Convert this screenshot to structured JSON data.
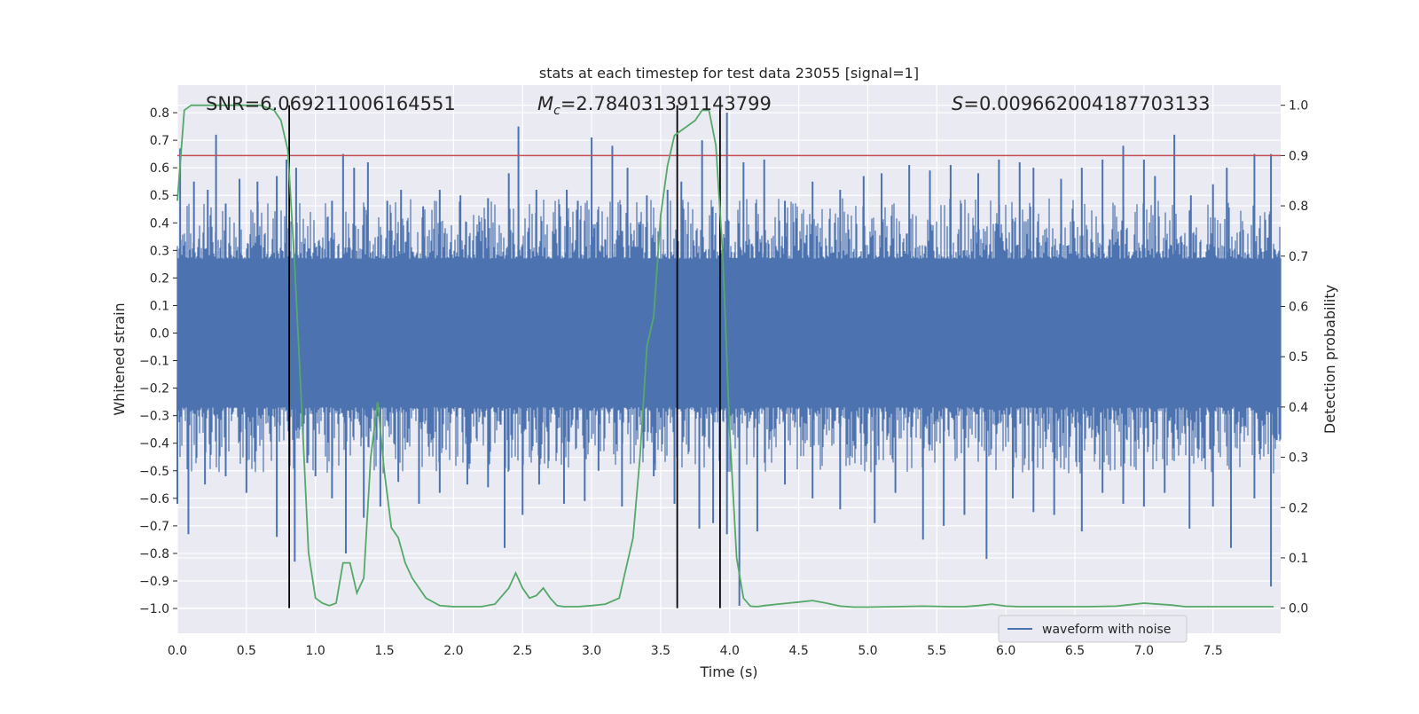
{
  "chart_data": {
    "type": "line",
    "title": "stats at each timestep for test data 23055 [signal=1]",
    "xlabel": "Time (s)",
    "ylabel_left": "Whitened strain",
    "ylabel_right": "Detection probability",
    "xlim": [
      0.0,
      7.99
    ],
    "ylim_left": [
      -1.09,
      0.9
    ],
    "ylim_right": [
      -0.05,
      1.04
    ],
    "x_ticks": [
      "0.0",
      "0.5",
      "1.0",
      "1.5",
      "2.0",
      "2.5",
      "3.0",
      "3.5",
      "4.0",
      "4.5",
      "5.0",
      "5.5",
      "6.0",
      "6.5",
      "7.0",
      "7.5"
    ],
    "y_left_ticks": [
      "0.8",
      "0.7",
      "0.6",
      "0.5",
      "0.4",
      "0.3",
      "0.2",
      "0.1",
      "0.0",
      "−0.1",
      "−0.2",
      "−0.3",
      "−0.4",
      "−0.5",
      "−0.6",
      "−0.7",
      "−0.8",
      "−0.9",
      "−1.0"
    ],
    "y_right_ticks": [
      "1.0",
      "0.9",
      "0.8",
      "0.7",
      "0.6",
      "0.5",
      "0.4",
      "0.3",
      "0.2",
      "0.1",
      "0.0"
    ],
    "grid": true,
    "annotations": {
      "snr": "SNR=6.069211006164551",
      "mc_symbol": "M",
      "mc_sub": "c",
      "mc_value": "=2.784031391143799",
      "s_symbol": "S",
      "s_value": "=0.009662004187703133"
    },
    "legend": {
      "label": "waveform with noise",
      "placement": "lower-right"
    },
    "threshold": {
      "value": 0.9,
      "axis": "right",
      "color": "#c44e52"
    },
    "vertical_lines": [
      0.81,
      3.62,
      3.93
    ],
    "series": [
      {
        "name": "waveform with noise",
        "axis": "left",
        "color": "#4c72b0",
        "description_of_spikes": {
          "positive": [
            [
              0.02,
              0.67
            ],
            [
              0.12,
              0.55
            ],
            [
              0.22,
              0.52
            ],
            [
              0.28,
              0.72
            ],
            [
              0.35,
              0.47
            ],
            [
              0.45,
              0.56
            ],
            [
              0.58,
              0.55
            ],
            [
              0.72,
              0.57
            ],
            [
              0.79,
              0.63
            ],
            [
              0.86,
              0.6
            ],
            [
              1.12,
              0.48
            ],
            [
              1.2,
              0.65
            ],
            [
              1.28,
              0.6
            ],
            [
              1.38,
              0.62
            ],
            [
              1.52,
              0.48
            ],
            [
              1.62,
              0.52
            ],
            [
              1.78,
              0.46
            ],
            [
              1.9,
              0.52
            ],
            [
              2.05,
              0.5
            ],
            [
              2.25,
              0.49
            ],
            [
              2.4,
              0.58
            ],
            [
              2.47,
              0.75
            ],
            [
              2.6,
              0.52
            ],
            [
              2.82,
              0.52
            ],
            [
              2.9,
              0.48
            ],
            [
              3.0,
              0.71
            ],
            [
              3.15,
              0.68
            ],
            [
              3.26,
              0.6
            ],
            [
              3.4,
              0.5
            ],
            [
              3.55,
              0.52
            ],
            [
              3.65,
              0.55
            ],
            [
              3.8,
              0.7
            ],
            [
              3.98,
              0.8
            ],
            [
              4.1,
              0.62
            ],
            [
              4.25,
              0.63
            ],
            [
              4.4,
              0.48
            ],
            [
              4.6,
              0.55
            ],
            [
              4.8,
              0.52
            ],
            [
              4.97,
              0.57
            ],
            [
              5.1,
              0.58
            ],
            [
              5.3,
              0.61
            ],
            [
              5.45,
              0.59
            ],
            [
              5.6,
              0.61
            ],
            [
              5.8,
              0.58
            ],
            [
              5.95,
              0.63
            ],
            [
              6.1,
              0.62
            ],
            [
              6.2,
              0.6
            ],
            [
              6.4,
              0.56
            ],
            [
              6.55,
              0.6
            ],
            [
              6.7,
              0.63
            ],
            [
              6.85,
              0.68
            ],
            [
              7.0,
              0.63
            ],
            [
              7.08,
              0.57
            ],
            [
              7.22,
              0.72
            ],
            [
              7.34,
              0.5
            ],
            [
              7.5,
              0.54
            ],
            [
              7.6,
              0.6
            ],
            [
              7.8,
              0.65
            ],
            [
              7.92,
              0.65
            ]
          ],
          "negative": [
            [
              0.0,
              -0.62
            ],
            [
              0.08,
              -0.73
            ],
            [
              0.2,
              -0.55
            ],
            [
              0.35,
              -0.52
            ],
            [
              0.5,
              -0.58
            ],
            [
              0.72,
              -0.74
            ],
            [
              0.85,
              -0.83
            ],
            [
              1.0,
              -0.52
            ],
            [
              1.12,
              -0.6
            ],
            [
              1.22,
              -0.8
            ],
            [
              1.35,
              -0.67
            ],
            [
              1.47,
              -0.63
            ],
            [
              1.6,
              -0.54
            ],
            [
              1.75,
              -0.62
            ],
            [
              1.9,
              -0.58
            ],
            [
              2.1,
              -0.55
            ],
            [
              2.25,
              -0.56
            ],
            [
              2.37,
              -0.78
            ],
            [
              2.5,
              -0.66
            ],
            [
              2.62,
              -0.55
            ],
            [
              2.8,
              -0.62
            ],
            [
              2.95,
              -0.61
            ],
            [
              3.05,
              -0.5
            ],
            [
              3.22,
              -0.63
            ],
            [
              3.45,
              -0.52
            ],
            [
              3.6,
              -0.62
            ],
            [
              3.78,
              -0.71
            ],
            [
              3.88,
              -0.69
            ],
            [
              3.98,
              -0.73
            ],
            [
              4.07,
              -0.99
            ],
            [
              4.2,
              -0.72
            ],
            [
              4.4,
              -0.55
            ],
            [
              4.6,
              -0.6
            ],
            [
              4.8,
              -0.64
            ],
            [
              5.05,
              -0.69
            ],
            [
              5.2,
              -0.58
            ],
            [
              5.4,
              -0.75
            ],
            [
              5.55,
              -0.7
            ],
            [
              5.7,
              -0.66
            ],
            [
              5.86,
              -0.82
            ],
            [
              6.05,
              -0.6
            ],
            [
              6.2,
              -0.65
            ],
            [
              6.35,
              -0.66
            ],
            [
              6.55,
              -0.72
            ],
            [
              6.7,
              -0.58
            ],
            [
              6.85,
              -0.62
            ],
            [
              7.0,
              -0.63
            ],
            [
              7.15,
              -0.58
            ],
            [
              7.33,
              -0.71
            ],
            [
              7.5,
              -0.63
            ],
            [
              7.63,
              -0.78
            ],
            [
              7.8,
              -0.6
            ],
            [
              7.92,
              -0.92
            ]
          ]
        }
      },
      {
        "name": "Detection probability",
        "axis": "right",
        "color": "#55a868",
        "x": [
          0.0,
          0.05,
          0.1,
          0.15,
          0.2,
          0.3,
          0.4,
          0.5,
          0.6,
          0.7,
          0.75,
          0.8,
          0.85,
          0.9,
          0.95,
          1.0,
          1.05,
          1.1,
          1.15,
          1.2,
          1.25,
          1.3,
          1.35,
          1.4,
          1.45,
          1.5,
          1.55,
          1.6,
          1.65,
          1.7,
          1.8,
          1.9,
          2.0,
          2.1,
          2.2,
          2.3,
          2.4,
          2.45,
          2.5,
          2.55,
          2.6,
          2.65,
          2.7,
          2.75,
          2.8,
          2.85,
          2.9,
          3.0,
          3.1,
          3.2,
          3.3,
          3.35,
          3.4,
          3.45,
          3.5,
          3.55,
          3.6,
          3.65,
          3.7,
          3.75,
          3.8,
          3.85,
          3.9,
          3.95,
          4.0,
          4.05,
          4.1,
          4.15,
          4.2,
          4.25,
          4.35,
          4.5,
          4.6,
          4.7,
          4.8,
          4.9,
          5.0,
          5.2,
          5.4,
          5.6,
          5.7,
          5.8,
          5.9,
          6.0,
          6.1,
          6.2,
          6.4,
          6.6,
          6.8,
          7.0,
          7.2,
          7.3,
          7.4,
          7.6,
          7.8,
          7.94
        ],
        "y": [
          0.81,
          0.99,
          1.0,
          1.0,
          1.0,
          1.0,
          1.0,
          1.0,
          1.0,
          0.99,
          0.97,
          0.91,
          0.68,
          0.4,
          0.11,
          0.02,
          0.01,
          0.005,
          0.01,
          0.09,
          0.09,
          0.03,
          0.06,
          0.3,
          0.41,
          0.27,
          0.16,
          0.14,
          0.09,
          0.06,
          0.02,
          0.005,
          0.003,
          0.003,
          0.003,
          0.008,
          0.04,
          0.07,
          0.04,
          0.02,
          0.025,
          0.04,
          0.02,
          0.005,
          0.003,
          0.003,
          0.003,
          0.005,
          0.008,
          0.02,
          0.14,
          0.3,
          0.52,
          0.58,
          0.78,
          0.88,
          0.94,
          0.95,
          0.96,
          0.97,
          0.99,
          0.99,
          0.92,
          0.7,
          0.35,
          0.1,
          0.02,
          0.004,
          0.003,
          0.005,
          0.008,
          0.012,
          0.015,
          0.01,
          0.004,
          0.002,
          0.002,
          0.003,
          0.004,
          0.003,
          0.003,
          0.005,
          0.008,
          0.004,
          0.003,
          0.003,
          0.003,
          0.003,
          0.004,
          0.01,
          0.006,
          0.003,
          0.003,
          0.003,
          0.003,
          0.003
        ]
      }
    ]
  }
}
